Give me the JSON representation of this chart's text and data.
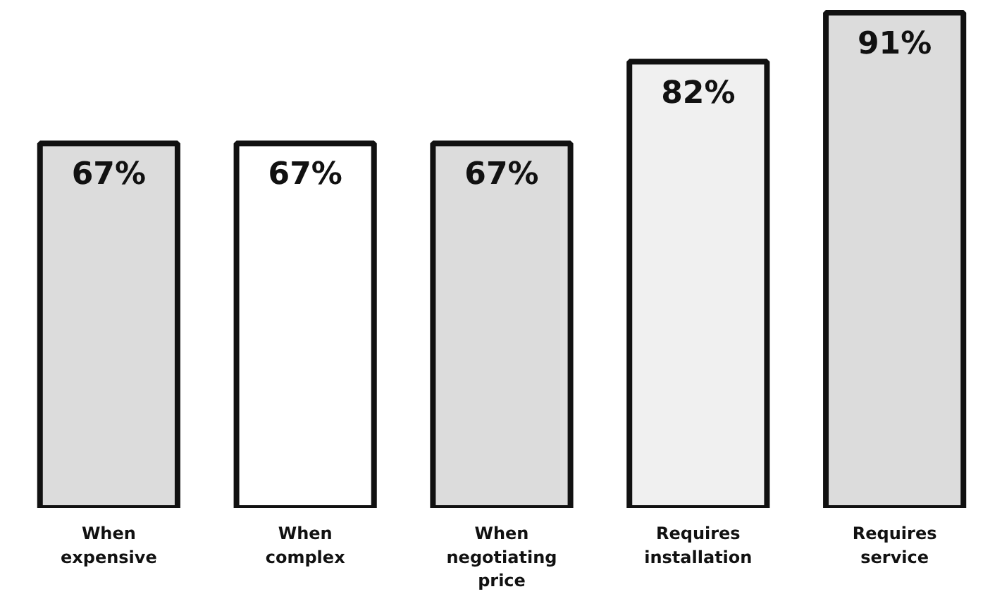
{
  "chart_data": {
    "type": "bar",
    "categories": [
      "When expensive",
      "When complex",
      "When negotiating price",
      "Requires installation",
      "Requires service"
    ],
    "values": [
      67,
      67,
      67,
      82,
      91
    ],
    "colors": [
      "#dcdcdc",
      "#ffffff",
      "#dcdcdc",
      "#f0f0f0",
      "#dcdcdc"
    ],
    "data_labels": true,
    "value_labels": [
      "67%",
      "67%",
      "67%",
      "82%",
      "91%"
    ]
  }
}
